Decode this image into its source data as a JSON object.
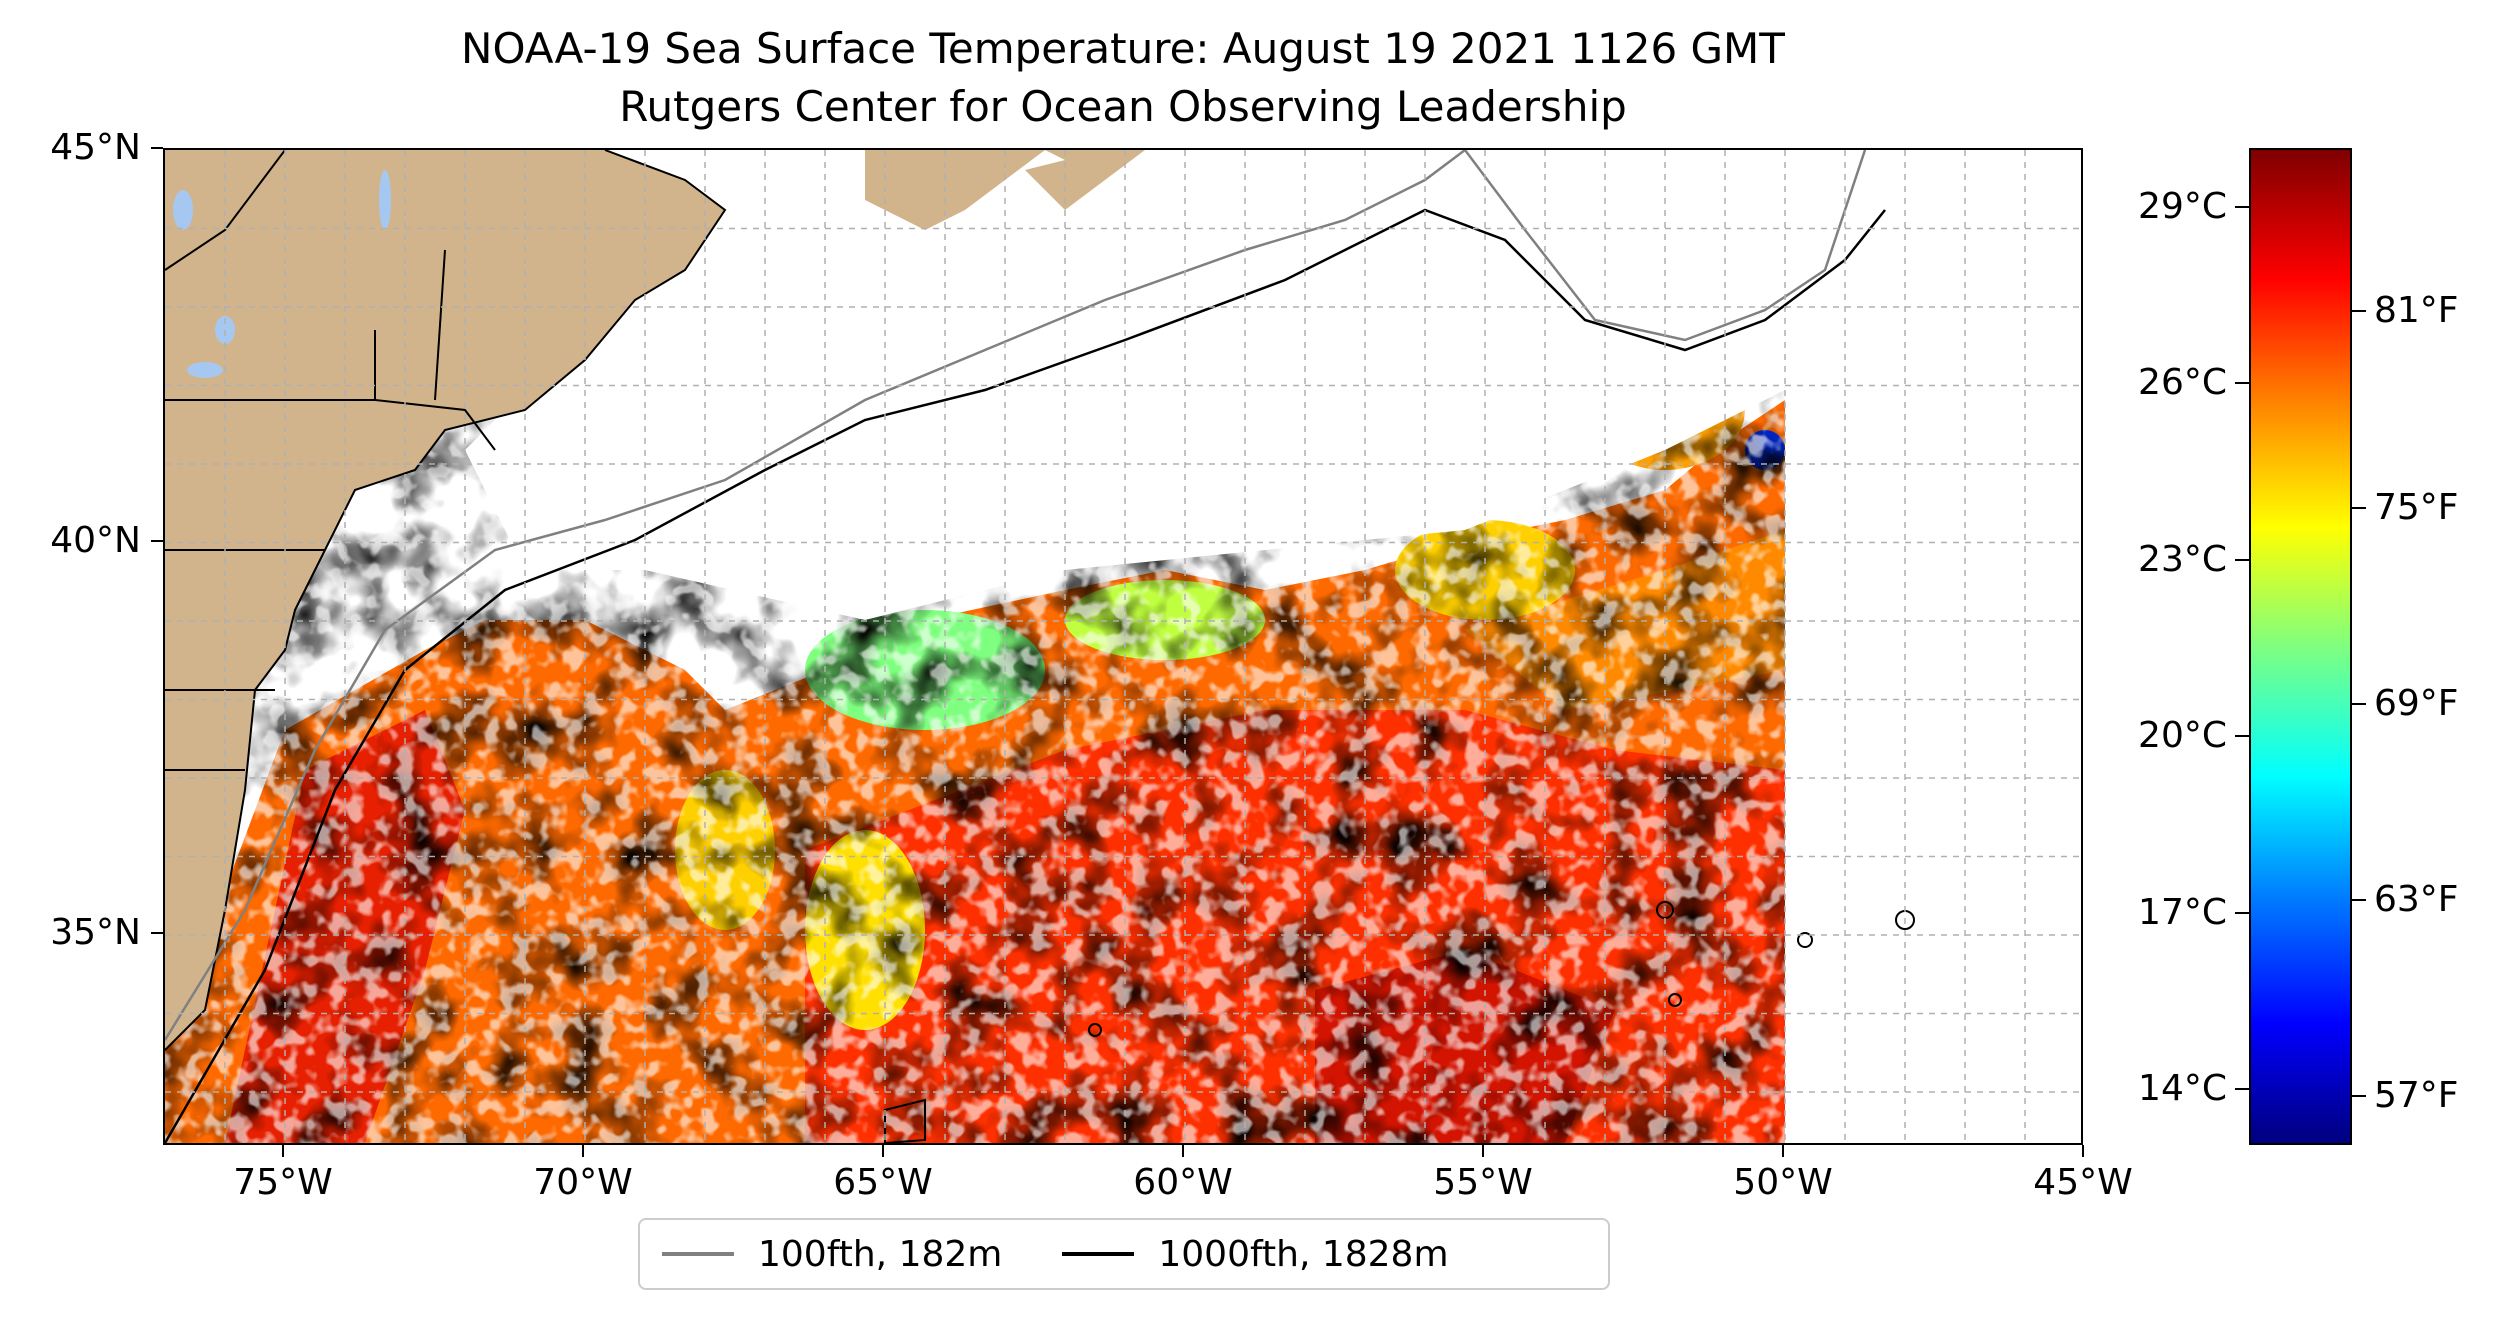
{
  "title": {
    "line1": "NOAA-19 Sea Surface Temperature: August 19 2021 1126 GMT",
    "line2": "Rutgers Center for Ocean Observing Leadership"
  },
  "map": {
    "lon_range": [
      -77,
      -45
    ],
    "lat_range": [
      32.3,
      45
    ],
    "x_ticks": [
      {
        "value": -75,
        "label": "75°W"
      },
      {
        "value": -70,
        "label": "70°W"
      },
      {
        "value": -65,
        "label": "65°W"
      },
      {
        "value": -60,
        "label": "60°W"
      },
      {
        "value": -55,
        "label": "55°W"
      },
      {
        "value": -50,
        "label": "50°W"
      },
      {
        "value": -45,
        "label": "45°W"
      }
    ],
    "y_ticks": [
      {
        "value": 45,
        "label": "45°N"
      },
      {
        "value": 40,
        "label": "40°N"
      },
      {
        "value": 35,
        "label": "35°N"
      }
    ],
    "gridlines": true,
    "colors": {
      "land": "#d2b48c",
      "lakes": "#a6c8f0",
      "grid": "#b0b0b0",
      "isobath_100": "#808080",
      "isobath_1000": "#000000"
    }
  },
  "colorbar": {
    "celsius_ticks": [
      {
        "value": 29,
        "label": "29°C"
      },
      {
        "value": 26,
        "label": "26°C"
      },
      {
        "value": 23,
        "label": "23°C"
      },
      {
        "value": 20,
        "label": "20°C"
      },
      {
        "value": 17,
        "label": "17°C"
      },
      {
        "value": 14,
        "label": "14°C"
      }
    ],
    "fahrenheit_ticks": [
      {
        "value": 81,
        "label": "81°F"
      },
      {
        "value": 75,
        "label": "75°F"
      },
      {
        "value": 69,
        "label": "69°F"
      },
      {
        "value": 63,
        "label": "63°F"
      },
      {
        "value": 57,
        "label": "57°F"
      }
    ],
    "range_f": [
      55.5,
      86
    ],
    "colormap": "jet"
  },
  "legend": {
    "items": [
      {
        "label": "100fth, 182m",
        "color": "#808080"
      },
      {
        "label": "1000fth, 1828m",
        "color": "#000000"
      }
    ]
  }
}
